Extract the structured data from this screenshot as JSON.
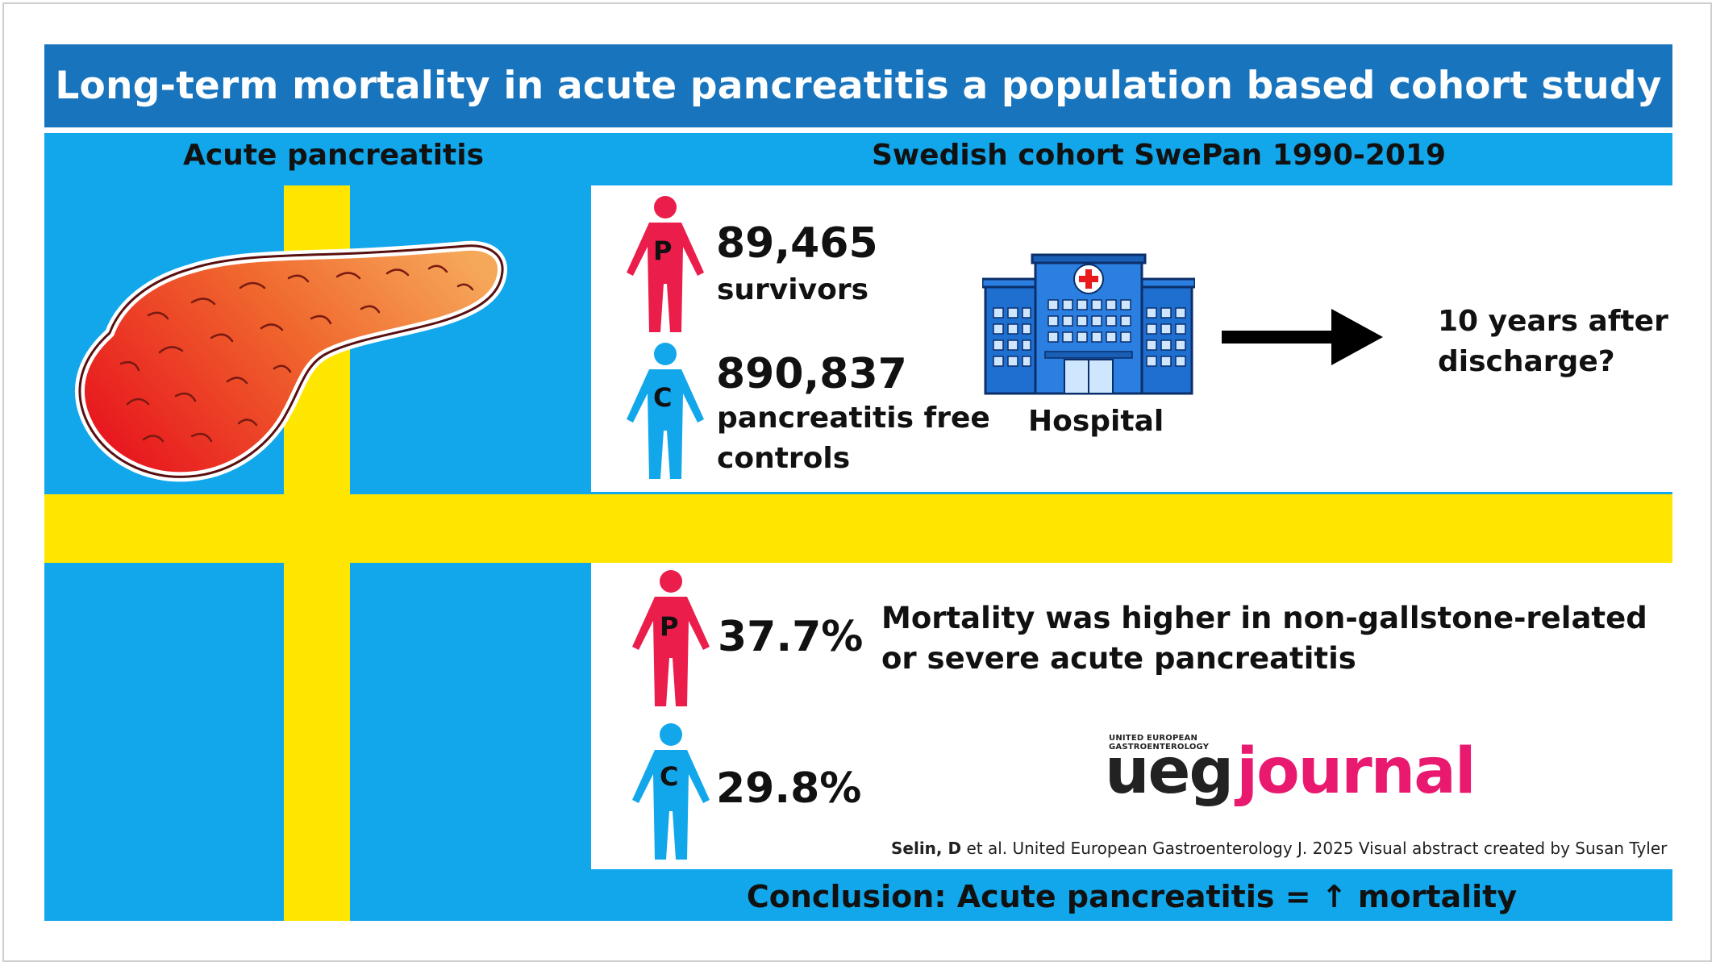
{
  "title": "Long-term mortality in acute pancreatitis a population based cohort study",
  "left_header": "Acute pancreatitis",
  "right_header": "Swedish cohort SwePan 1990-2019",
  "survivors": {
    "letter": "P",
    "count": "89,465",
    "label": "survivors"
  },
  "controls": {
    "letter": "C",
    "count": "890,837",
    "label_line1": "pancreatitis free",
    "label_line2": "controls"
  },
  "hospital_label": "Hospital",
  "followup": {
    "line1": "10 years after",
    "line2": "discharge?"
  },
  "mortality": {
    "patients": {
      "letter": "P",
      "value": "37.7%"
    },
    "controls": {
      "letter": "C",
      "value": "29.8%"
    },
    "finding_line1": "Mortality was higher in non-gallstone-related",
    "finding_line2": "or severe acute pancreatitis"
  },
  "journal": {
    "org_line1": "UNITED EUROPEAN",
    "org_line2": "GASTROENTEROLOGY",
    "ueg": "ueg",
    "journal": "journal"
  },
  "citation": {
    "author": "Selin, D",
    "rest": " et al. United European Gastroenterology J. 2025 Visual abstract created by Susan Tyler"
  },
  "conclusion": {
    "label": "Conclusion:",
    "text": " Acute pancreatitis = ",
    "arrow": "↑",
    "tail": " mortality"
  },
  "colors": {
    "title_blue": "#1874bd",
    "flag_blue": "#12a7eb",
    "flag_yellow": "#ffe600",
    "patient_red": "#ea1d4b",
    "control_blue": "#12a7eb",
    "ueg_pink": "#e8196f",
    "hospital_blue": "#1f6fd0"
  },
  "icons": [
    "pancreas-illustration",
    "person-patient-icon",
    "person-control-icon",
    "hospital-icon",
    "arrow-right-icon"
  ]
}
